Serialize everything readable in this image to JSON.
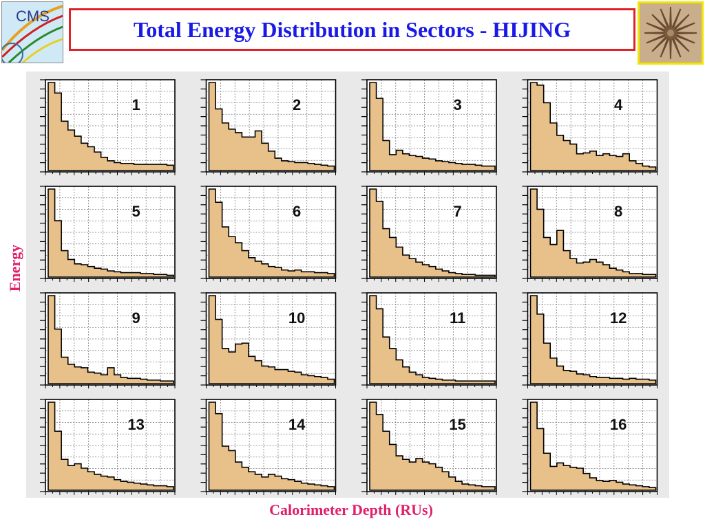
{
  "title": "Total Energy Distribution in Sectors - HIJING",
  "logo": {
    "text": "CMS"
  },
  "chart_data": {
    "type": "bar",
    "style": "step-histogram",
    "xlabel": "Calorimeter Depth (RUs)",
    "ylabel": "Energy",
    "grid": true,
    "fill_color": "#e8c08a",
    "bins": 19,
    "panels": [
      {
        "label": "1",
        "values": [
          1.0,
          0.88,
          0.56,
          0.46,
          0.39,
          0.31,
          0.27,
          0.21,
          0.15,
          0.11,
          0.09,
          0.08,
          0.08,
          0.07,
          0.07,
          0.07,
          0.07,
          0.07,
          0.06
        ]
      },
      {
        "label": "2",
        "values": [
          1.0,
          0.7,
          0.54,
          0.47,
          0.43,
          0.38,
          0.38,
          0.45,
          0.31,
          0.22,
          0.14,
          0.11,
          0.1,
          0.09,
          0.09,
          0.08,
          0.07,
          0.06,
          0.05
        ]
      },
      {
        "label": "3",
        "values": [
          1.0,
          0.82,
          0.34,
          0.18,
          0.23,
          0.19,
          0.17,
          0.16,
          0.14,
          0.13,
          0.11,
          0.1,
          0.09,
          0.08,
          0.07,
          0.07,
          0.06,
          0.05,
          0.05
        ]
      },
      {
        "label": "4",
        "values": [
          1.0,
          0.97,
          0.77,
          0.54,
          0.4,
          0.34,
          0.3,
          0.19,
          0.2,
          0.22,
          0.17,
          0.19,
          0.17,
          0.16,
          0.19,
          0.11,
          0.08,
          0.05,
          0.04
        ]
      },
      {
        "label": "5",
        "values": [
          1.0,
          0.64,
          0.3,
          0.2,
          0.15,
          0.14,
          0.12,
          0.1,
          0.09,
          0.07,
          0.06,
          0.05,
          0.05,
          0.05,
          0.04,
          0.04,
          0.03,
          0.03,
          0.02
        ]
      },
      {
        "label": "6",
        "values": [
          1.0,
          0.85,
          0.57,
          0.46,
          0.39,
          0.3,
          0.22,
          0.18,
          0.15,
          0.12,
          0.11,
          0.08,
          0.07,
          0.08,
          0.06,
          0.06,
          0.05,
          0.05,
          0.04
        ]
      },
      {
        "label": "7",
        "values": [
          1.0,
          0.86,
          0.55,
          0.45,
          0.34,
          0.25,
          0.21,
          0.17,
          0.14,
          0.12,
          0.09,
          0.07,
          0.05,
          0.04,
          0.03,
          0.03,
          0.02,
          0.02,
          0.02
        ]
      },
      {
        "label": "8",
        "values": [
          1.0,
          0.77,
          0.45,
          0.37,
          0.53,
          0.3,
          0.21,
          0.16,
          0.17,
          0.2,
          0.17,
          0.14,
          0.1,
          0.08,
          0.06,
          0.04,
          0.04,
          0.03,
          0.03
        ]
      },
      {
        "label": "9",
        "values": [
          1.0,
          0.62,
          0.3,
          0.22,
          0.19,
          0.18,
          0.13,
          0.12,
          0.1,
          0.18,
          0.1,
          0.07,
          0.06,
          0.06,
          0.05,
          0.04,
          0.04,
          0.03,
          0.03
        ]
      },
      {
        "label": "10",
        "values": [
          1.0,
          0.73,
          0.4,
          0.36,
          0.45,
          0.46,
          0.31,
          0.26,
          0.2,
          0.19,
          0.16,
          0.16,
          0.14,
          0.13,
          0.1,
          0.09,
          0.08,
          0.07,
          0.05
        ]
      },
      {
        "label": "11",
        "values": [
          1.0,
          0.85,
          0.53,
          0.4,
          0.27,
          0.19,
          0.13,
          0.1,
          0.07,
          0.06,
          0.05,
          0.04,
          0.04,
          0.03,
          0.03,
          0.03,
          0.03,
          0.03,
          0.03
        ]
      },
      {
        "label": "12",
        "values": [
          1.0,
          0.79,
          0.46,
          0.29,
          0.2,
          0.15,
          0.14,
          0.11,
          0.1,
          0.08,
          0.07,
          0.07,
          0.06,
          0.06,
          0.05,
          0.06,
          0.05,
          0.05,
          0.04
        ]
      },
      {
        "label": "13",
        "values": [
          1.0,
          0.67,
          0.35,
          0.28,
          0.3,
          0.25,
          0.21,
          0.18,
          0.16,
          0.15,
          0.12,
          0.1,
          0.09,
          0.08,
          0.07,
          0.06,
          0.05,
          0.05,
          0.04
        ]
      },
      {
        "label": "14",
        "values": [
          1.0,
          0.87,
          0.5,
          0.45,
          0.32,
          0.26,
          0.21,
          0.18,
          0.15,
          0.18,
          0.16,
          0.13,
          0.12,
          0.1,
          0.08,
          0.07,
          0.06,
          0.05,
          0.04
        ]
      },
      {
        "label": "15",
        "values": [
          1.0,
          0.86,
          0.67,
          0.52,
          0.39,
          0.35,
          0.32,
          0.36,
          0.32,
          0.3,
          0.26,
          0.21,
          0.15,
          0.1,
          0.07,
          0.06,
          0.05,
          0.04,
          0.04
        ]
      },
      {
        "label": "16",
        "values": [
          1.0,
          0.7,
          0.42,
          0.27,
          0.31,
          0.28,
          0.26,
          0.25,
          0.19,
          0.14,
          0.11,
          0.1,
          0.11,
          0.09,
          0.07,
          0.06,
          0.05,
          0.04,
          0.03
        ]
      }
    ]
  }
}
